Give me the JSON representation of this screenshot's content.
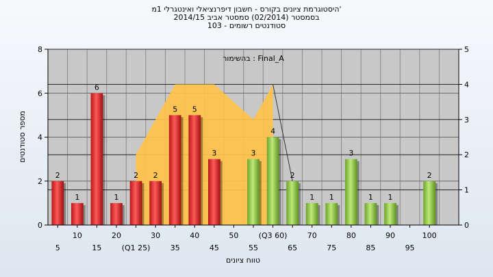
{
  "chart_data": {
    "type": "bar",
    "title_lines": [
      "היסטוגרמת ציונים בקורס - חשבון דיפרנציאלי ואינטגרלי 1מ'",
      "בסמסטר  (02/2014)  סמסטר אביב 2014/15",
      "סטודנטים רשומים - 103"
    ],
    "annotation": "בהשימור : Final_A",
    "xlabel": "טווח ציונים",
    "ylabel": "מספר סטודנטים",
    "ylim": [
      0,
      8
    ],
    "y2lim": [
      0,
      5
    ],
    "y_ticks": [
      0,
      2,
      4,
      6,
      8
    ],
    "y2_ticks": [
      0,
      1,
      2,
      3,
      4,
      5
    ],
    "categories": [
      "5",
      "10",
      "15",
      "20",
      "(Q1 25)",
      "30",
      "35",
      "40",
      "45",
      "50",
      "55",
      "(Q3 60)",
      "65",
      "70",
      "75",
      "80",
      "85",
      "90",
      "95",
      "100"
    ],
    "values": [
      2,
      1,
      6,
      1,
      2,
      2,
      5,
      5,
      3,
      0,
      3,
      4,
      2,
      1,
      1,
      3,
      1,
      1,
      0,
      2
    ],
    "data_labels": [
      "2",
      "1",
      "6",
      "1",
      "2",
      "2",
      "5",
      "5",
      "3",
      "",
      "3",
      "4",
      "2",
      "1",
      "1",
      "3",
      "1",
      "1",
      "",
      "2"
    ],
    "series": [
      {
        "name": "below-55",
        "color": "#e03030",
        "range": [
          0,
          9
        ]
      },
      {
        "name": "55-and-above",
        "color": "#8cc53f",
        "range": [
          10,
          19
        ]
      }
    ],
    "area_series": {
      "color": "#ffc24a",
      "x_index": [
        4,
        5,
        6,
        7,
        8,
        9,
        10,
        11
      ],
      "values_y2": [
        2,
        3,
        4,
        4,
        4,
        3.5,
        3,
        4
      ]
    },
    "guide_line_x_index": [
      11,
      12
    ],
    "grid": true,
    "legend": "none"
  }
}
